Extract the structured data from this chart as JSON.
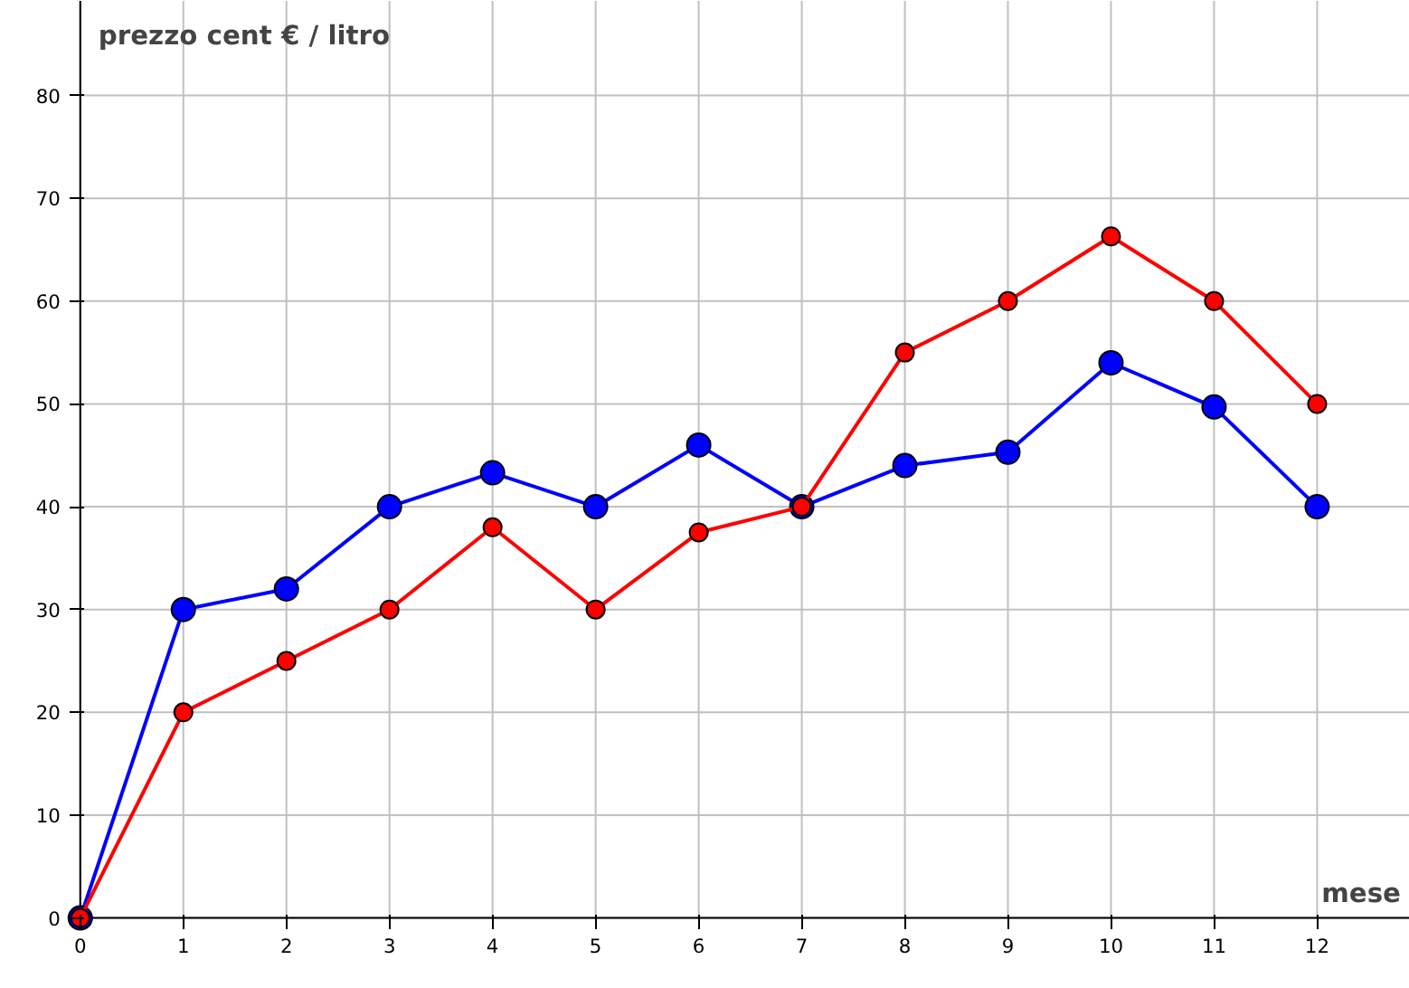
{
  "chart_data": {
    "type": "line",
    "xlabel": "mese",
    "ylabel": "prezzo cent € / litro",
    "x": [
      0,
      1,
      2,
      3,
      4,
      5,
      6,
      7,
      8,
      9,
      10,
      11,
      12
    ],
    "series": [
      {
        "color": "#0000ff",
        "values": [
          0,
          30,
          32,
          40,
          43.3,
          40,
          46,
          40,
          44,
          45.3,
          54,
          49.7,
          40
        ]
      },
      {
        "color": "#ff0000",
        "values": [
          0,
          20,
          25,
          30,
          38,
          30,
          37.5,
          40,
          55,
          60,
          66.3,
          60,
          50
        ]
      }
    ],
    "xlim": [
      -0.77,
      12.9
    ],
    "ylim": [
      -6.9,
      89.2
    ],
    "xticks": [
      0,
      1,
      2,
      3,
      4,
      5,
      6,
      7,
      8,
      9,
      10,
      11,
      12
    ],
    "yticks": [
      0,
      10,
      20,
      30,
      40,
      50,
      60,
      70,
      80
    ],
    "grid": true,
    "marker": "circle",
    "line_style": "solid"
  }
}
